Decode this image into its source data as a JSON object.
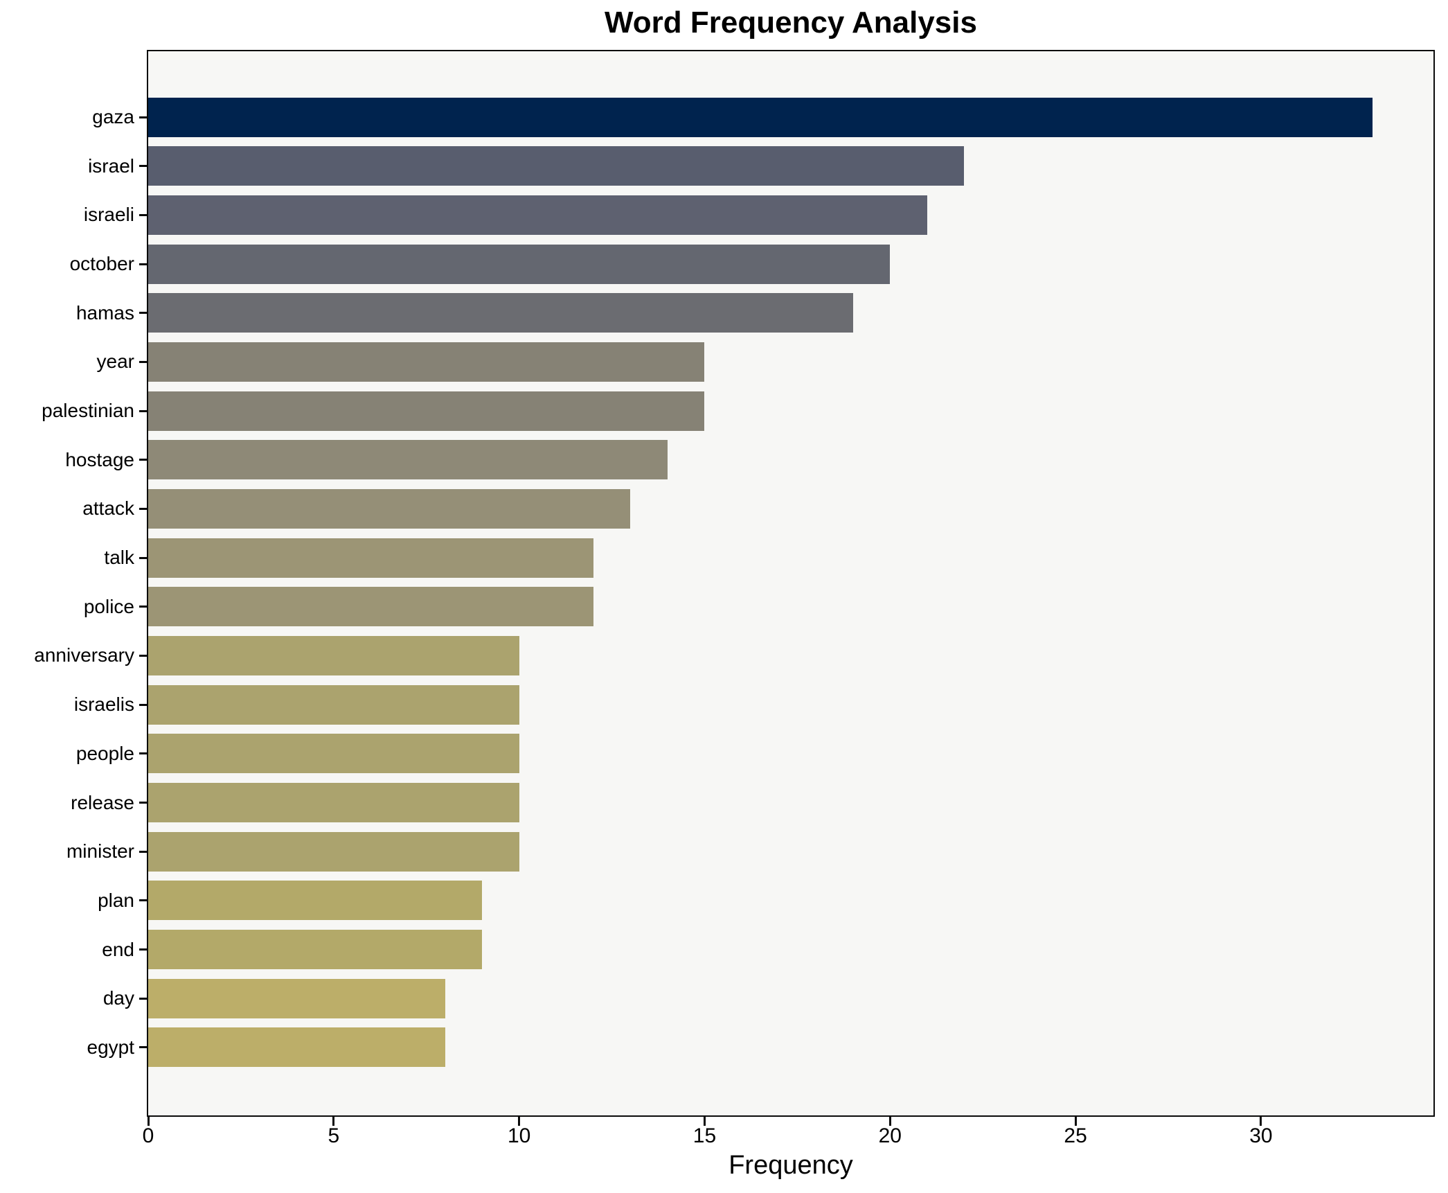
{
  "title": "Word Frequency Analysis",
  "xlabel": "Frequency",
  "chart_data": {
    "type": "bar",
    "orientation": "horizontal",
    "title": "Word Frequency Analysis",
    "xlabel": "Frequency",
    "ylabel": "",
    "grid": false,
    "legend": false,
    "plot_background": "#f7f7f5",
    "figure_background": "#ffffff",
    "xlim": [
      0,
      34.65
    ],
    "x_ticks": [
      0,
      5,
      10,
      15,
      20,
      25,
      30
    ],
    "categories": [
      "gaza",
      "israel",
      "israeli",
      "october",
      "hamas",
      "year",
      "palestinian",
      "hostage",
      "attack",
      "talk",
      "police",
      "anniversary",
      "israelis",
      "people",
      "release",
      "minister",
      "plan",
      "end",
      "day",
      "egypt"
    ],
    "values": [
      33,
      22,
      21,
      20,
      19,
      15,
      15,
      14,
      13,
      12,
      12,
      10,
      10,
      10,
      10,
      10,
      9,
      9,
      8,
      8
    ],
    "bar_colors": [
      "#00234e",
      "#585d6e",
      "#5e6170",
      "#646770",
      "#6b6c71",
      "#868275",
      "#868275",
      "#8e8977",
      "#958f77",
      "#9c9575",
      "#9c9575",
      "#aba36e",
      "#aba36e",
      "#aba36e",
      "#aba36e",
      "#aba36e",
      "#b3a969",
      "#b3a969",
      "#bcae69",
      "#bcae69"
    ],
    "colormap": "cividis (dark navy high-frequency to khaki low-frequency)"
  }
}
